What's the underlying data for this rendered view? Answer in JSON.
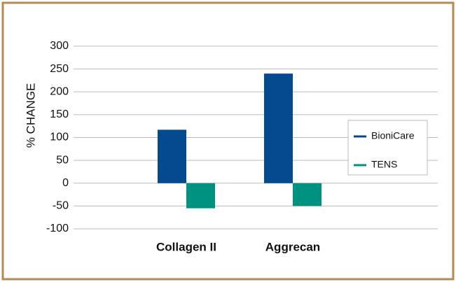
{
  "chart_data": {
    "type": "bar",
    "y_label": "% CHANGE",
    "categories": [
      "Collagen II",
      "Aggrecan"
    ],
    "series": [
      {
        "name": "BioniCare",
        "color": "#034a8f",
        "values": [
          117,
          240
        ]
      },
      {
        "name": "TENS",
        "color": "#009280",
        "values": [
          -55,
          -50
        ]
      }
    ],
    "ylim": [
      -100,
      300
    ],
    "yticks": [
      -100,
      -50,
      0,
      50,
      100,
      150,
      200,
      250,
      300
    ],
    "grid": true,
    "legend": "right"
  }
}
